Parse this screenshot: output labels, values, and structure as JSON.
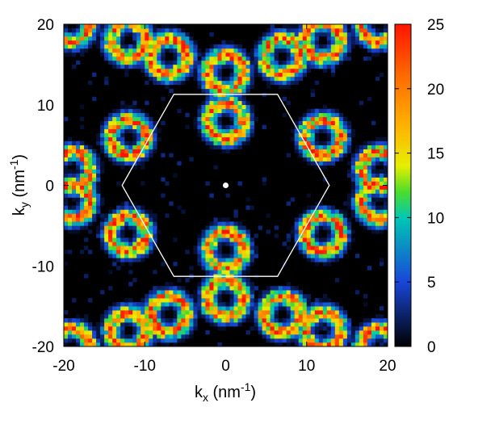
{
  "chart_data": {
    "type": "heatmap",
    "title": "",
    "xlabel": {
      "main": "k",
      "sub": "x",
      "unit": " (nm",
      "sup": "-1",
      "close": ")"
    },
    "ylabel": {
      "main": "k",
      "sub": "y",
      "unit": " (nm",
      "sup": "-1",
      "close": ")"
    },
    "xlim": [
      -20,
      20
    ],
    "ylim": [
      -20,
      20
    ],
    "x_ticks": [
      "-20",
      "-10",
      "0",
      "10",
      "20"
    ],
    "y_ticks": [
      "-20",
      "-10",
      "0",
      "10",
      "20"
    ],
    "colorbar": {
      "range": [
        0,
        25
      ],
      "ticks": [
        "0",
        "5",
        "10",
        "15",
        "20",
        "25"
      ],
      "stops": [
        {
          "value": 0,
          "color": "#000000"
        },
        {
          "value": 5,
          "color": "#1846d8"
        },
        {
          "value": 10,
          "color": "#00c8b4"
        },
        {
          "value": 12,
          "color": "#4cdd2a"
        },
        {
          "value": 14,
          "color": "#e6ee00"
        },
        {
          "value": 17,
          "color": "#ffb400"
        },
        {
          "value": 21,
          "color": "#ff6a00"
        },
        {
          "value": 25,
          "color": "#ff1400"
        }
      ]
    },
    "hexagon_vertices": [
      [
        12.8,
        0
      ],
      [
        6.4,
        11.3
      ],
      [
        -6.4,
        11.3
      ],
      [
        -12.8,
        0
      ],
      [
        -6.4,
        -11.3
      ],
      [
        6.4,
        -11.3
      ]
    ],
    "hexagon_color": "#ffffff",
    "center_point": [
      0,
      0
    ],
    "lobe_centers": [
      [
        0,
        14
      ],
      [
        0,
        -8
      ],
      [
        0,
        8
      ],
      [
        0,
        -14
      ],
      [
        -12,
        6
      ],
      [
        -12,
        -6
      ],
      [
        12,
        6
      ],
      [
        12,
        -6
      ],
      [
        -19,
        2
      ],
      [
        -19,
        -2
      ],
      [
        19,
        2
      ],
      [
        19,
        -2
      ],
      [
        -7,
        16
      ],
      [
        7,
        16
      ],
      [
        -7,
        -16
      ],
      [
        7,
        -16
      ],
      [
        -12,
        18
      ],
      [
        12,
        18
      ],
      [
        -12,
        -18
      ],
      [
        12,
        -18
      ],
      [
        -19,
        20
      ],
      [
        19,
        20
      ],
      [
        -19,
        -20
      ],
      [
        19,
        -20
      ]
    ],
    "peak_intensity": 25,
    "grid": false,
    "legend": "none"
  }
}
